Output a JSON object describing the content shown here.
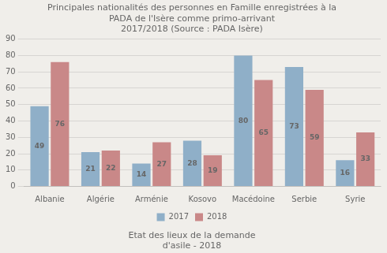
{
  "chart_data": {
    "type": "bar",
    "title": [
      "Principales nationalités des personnes en Famille enregistrées à la",
      "PADA de l'Isère comme primo-arrivant",
      "2017/2018 (Source : PADA Isère)"
    ],
    "footer": [
      "Etat des lieux de la demande",
      "d'asile - 2018"
    ],
    "categories": [
      "Albanie",
      "Algérie",
      "Arménie",
      "Kosovo",
      "Macédoine",
      "Serbie",
      "Syrie"
    ],
    "series": [
      {
        "name": "2017",
        "color": "#8fafc8",
        "values": [
          49,
          21,
          14,
          28,
          80,
          73,
          16
        ]
      },
      {
        "name": "2018",
        "color": "#c98888",
        "values": [
          76,
          22,
          27,
          19,
          65,
          59,
          33
        ]
      }
    ],
    "ylim": [
      0,
      90
    ],
    "yticks": [
      0,
      10,
      20,
      30,
      40,
      50,
      60,
      70,
      80,
      90
    ],
    "grid": true,
    "legend": "bottom",
    "data_labels": true
  }
}
